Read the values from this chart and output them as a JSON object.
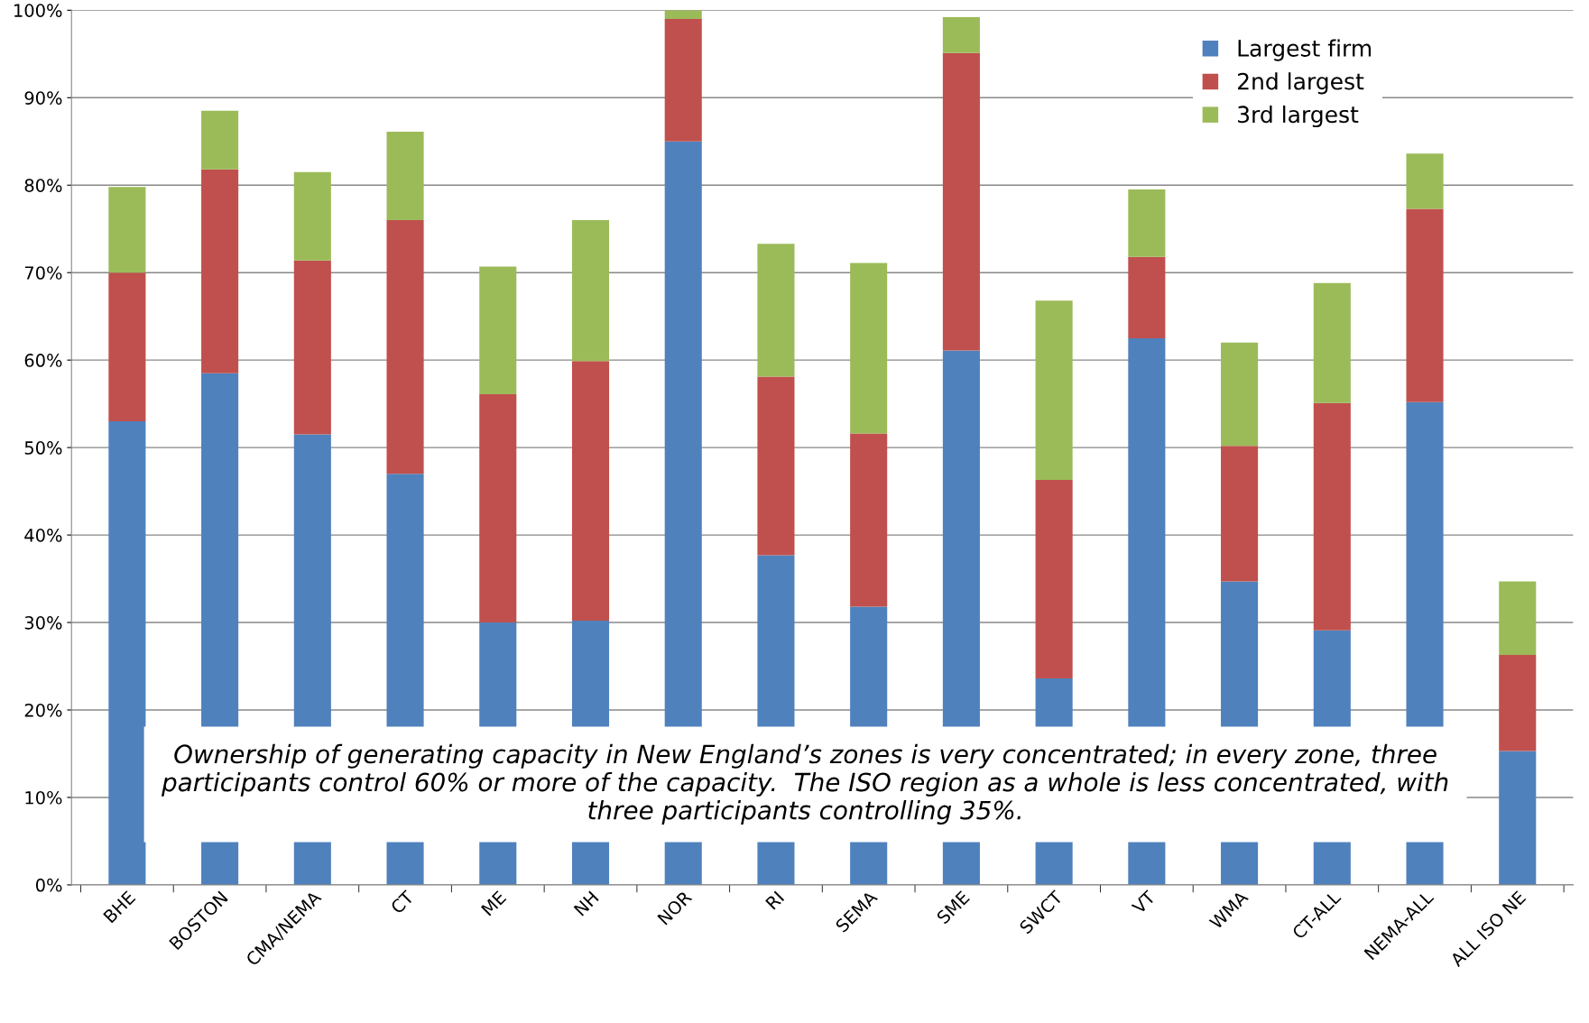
{
  "chart_data": {
    "type": "bar",
    "stacked": true,
    "categories": [
      "BHE",
      "BOSTON",
      "CMA/NEMA",
      "CT",
      "ME",
      "NH",
      "NOR",
      "RI",
      "SEMA",
      "SME",
      "SWCT",
      "VT",
      "WMA",
      "CT-ALL",
      "NEMA-ALL",
      "ALL ISO NE"
    ],
    "series": [
      {
        "name": "Largest firm",
        "color": "#4f81bd",
        "values": [
          53,
          58.5,
          51.5,
          47,
          30,
          30.2,
          85,
          37.7,
          31.8,
          61.1,
          23.6,
          62.5,
          34.7,
          29.1,
          55.2,
          15.3
        ]
      },
      {
        "name": "2nd largest",
        "color": "#c0504d",
        "values": [
          17,
          23.3,
          19.9,
          29,
          26.1,
          29.7,
          14,
          20.4,
          19.8,
          34,
          22.7,
          9.3,
          15.5,
          26,
          22.1,
          11
        ]
      },
      {
        "name": "3rd largest",
        "color": "#9bbb59",
        "values": [
          9.8,
          6.7,
          10.1,
          10.1,
          14.6,
          16.1,
          1,
          15.2,
          19.5,
          4.1,
          20.5,
          7.7,
          11.8,
          13.7,
          6.3,
          8.4
        ]
      }
    ],
    "ylim": [
      0,
      100
    ],
    "yticks": [
      {
        "value": 0,
        "label": "0%"
      },
      {
        "value": 10,
        "label": "10%"
      },
      {
        "value": 20,
        "label": "20%"
      },
      {
        "value": 30,
        "label": "30%"
      },
      {
        "value": 40,
        "label": "40%"
      },
      {
        "value": 50,
        "label": "50%"
      },
      {
        "value": 60,
        "label": "60%"
      },
      {
        "value": 70,
        "label": "70%"
      },
      {
        "value": 80,
        "label": "80%"
      },
      {
        "value": 90,
        "label": "90%"
      },
      {
        "value": 100,
        "label": "100%"
      }
    ],
    "grid": "y",
    "legend": "top right",
    "annotations": [
      "Ownership of generating capacity in New England’s zones is very concentrated; in every zone, three participants control 60% or more of the capacity.  The ISO region as a whole is less concentrated, with three participants controlling 35%."
    ]
  }
}
